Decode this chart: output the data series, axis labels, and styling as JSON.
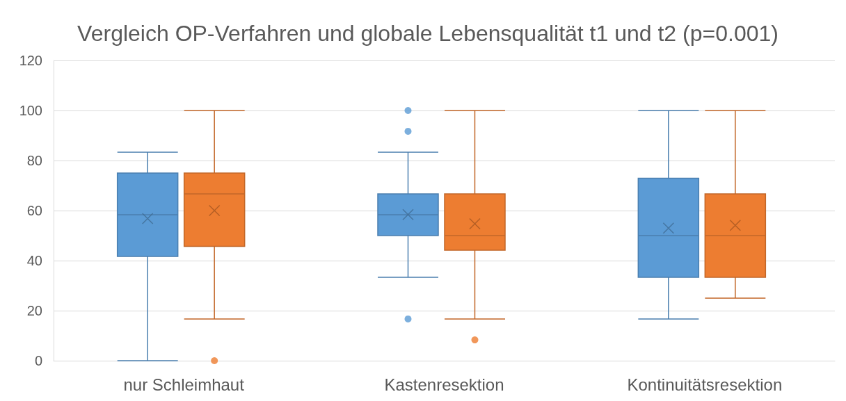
{
  "chart_data": {
    "type": "box",
    "title": "Vergleich OP-Verfahren und globale Lebensqualität t1 und t2 (p=0.001)",
    "categories": [
      "nur Schleimhaut",
      "Kastenresektion",
      "Kontinuitätsresektion"
    ],
    "series": [
      {
        "color": "#5b9bd5",
        "boxes": [
          {
            "low": 0,
            "q1": 41.7,
            "median": 58.3,
            "q3": 75,
            "high": 83.3,
            "mean": 56.8
          },
          {
            "low": 33.3,
            "q1": 50,
            "median": 58.3,
            "q3": 66.7,
            "high": 83.3,
            "mean": 58.4,
            "outliers": [
              100,
              91.7,
              16.7
            ]
          },
          {
            "low": 16.7,
            "q1": 33.3,
            "median": 50,
            "q3": 72.9,
            "high": 100,
            "mean": 53
          }
        ]
      },
      {
        "color": "#ed7d31",
        "boxes": [
          {
            "low": 16.7,
            "q1": 45.7,
            "median": 66.7,
            "q3": 75,
            "high": 100,
            "mean": 60,
            "outliers": [
              0
            ]
          },
          {
            "low": 16.7,
            "q1": 44.2,
            "median": 50,
            "q3": 66.7,
            "high": 100,
            "mean": 54.7,
            "outliers": [
              8.3
            ]
          },
          {
            "low": 25,
            "q1": 33.3,
            "median": 50,
            "q3": 66.7,
            "high": 100,
            "mean": 54.1
          }
        ]
      }
    ],
    "ylim": [
      0,
      120
    ],
    "yticks": [
      0,
      20,
      40,
      60,
      80,
      100,
      120
    ],
    "grid": "y",
    "marker": "circle"
  }
}
